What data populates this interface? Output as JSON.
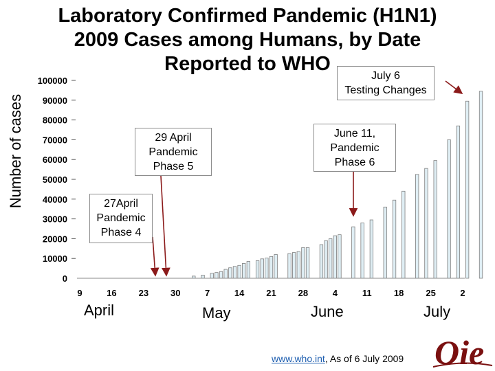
{
  "title_lines": [
    "Laboratory Confirmed Pandemic (H1N1)",
    "2009 Cases among Humans, by Date",
    "Reported to WHO"
  ],
  "ylabel": "Number of cases",
  "annotations": {
    "july6": [
      "July 6",
      "Testing Changes"
    ],
    "june11": [
      "June 11,",
      "Pandemic",
      "Phase 6"
    ],
    "april29": [
      "29 April",
      "Pandemic",
      "Phase 5"
    ],
    "april27": [
      "27April",
      "Pandemic",
      "Phase 4"
    ]
  },
  "months": [
    "April",
    "May",
    "June",
    "July"
  ],
  "source": {
    "link_text": "www.who.int",
    "rest": ", As of 6 July 2009"
  },
  "logo_text": "Oie",
  "colors": {
    "bar_fill": "#dfeef4",
    "bar_edge": "#7f7f7f",
    "arrow": "#8b1a1a",
    "logo": "#7a1010"
  },
  "chart_data": {
    "type": "bar",
    "title": "Laboratory Confirmed Pandemic (H1N1) 2009 Cases among Humans, by Date Reported to WHO",
    "ylabel": "Number of cases",
    "xlabel": "",
    "ylim": [
      0,
      100000
    ],
    "yticks": [
      0,
      10000,
      20000,
      30000,
      40000,
      50000,
      60000,
      70000,
      80000,
      90000,
      100000
    ],
    "ytick_labels": [
      "0",
      "10000",
      "20000",
      "30000",
      "40000",
      "50000",
      "60000",
      "70000",
      "80000",
      "90000",
      "100000"
    ],
    "xtick_labels": [
      "9",
      "16",
      "23",
      "30",
      "7",
      "14",
      "21",
      "28",
      "4",
      "11",
      "18",
      "25",
      "2"
    ],
    "month_labels": [
      "April",
      "May",
      "June",
      "July"
    ],
    "grid": false,
    "categories": [
      "May 4",
      "May 6",
      "May 8",
      "May 9",
      "May 10",
      "May 11",
      "May 12",
      "May 13",
      "May 14",
      "May 15",
      "May 16",
      "May 18",
      "May 19",
      "May 20",
      "May 21",
      "May 22",
      "May 25",
      "May 26",
      "May 27",
      "May 28",
      "May 29",
      "Jun 1",
      "Jun 2",
      "Jun 3",
      "Jun 4",
      "Jun 5",
      "Jun 8",
      "Jun 10",
      "Jun 12",
      "Jun 15",
      "Jun 17",
      "Jun 19",
      "Jun 22",
      "Jun 24",
      "Jun 26",
      "Jun 29",
      "Jul 1",
      "Jul 3",
      "Jul 6"
    ],
    "values": [
      1100,
      1600,
      2500,
      2900,
      3400,
      4500,
      5300,
      6000,
      6500,
      7500,
      8500,
      8900,
      9800,
      10200,
      11000,
      12000,
      12500,
      13000,
      13500,
      15500,
      15500,
      17000,
      19000,
      20000,
      21500,
      22000,
      26000,
      28000,
      29500,
      36000,
      39500,
      44000,
      52500,
      55500,
      59500,
      70000,
      77000,
      89500,
      94500
    ],
    "annotations": [
      "27April Pandemic Phase 4",
      "29 April Pandemic Phase 5",
      "June 11, Pandemic Phase 6",
      "July 6 Testing Changes"
    ]
  }
}
